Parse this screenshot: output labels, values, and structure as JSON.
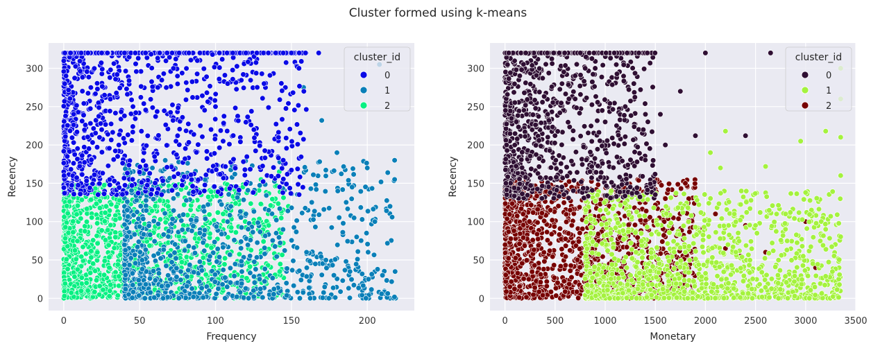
{
  "title": "Cluster formed using k-means",
  "chart_data": [
    {
      "type": "scatter",
      "xlabel": "Frequency",
      "ylabel": "Recency",
      "xlim": [
        -10,
        231
      ],
      "ylim": [
        -16,
        333
      ],
      "xticks": [
        0,
        50,
        100,
        150,
        200
      ],
      "yticks": [
        0,
        50,
        100,
        150,
        200,
        250,
        300
      ],
      "grid": true,
      "legend": {
        "title": "cluster_id",
        "placement": "top-right"
      },
      "series": [
        {
          "name": "0",
          "color": "#0a0ae6",
          "region": {
            "x": [
              0,
              160
            ],
            "y": [
              135,
              320
            ]
          },
          "anchors": [
            [
              108,
              280
            ],
            [
              132,
              280
            ],
            [
              155,
              300
            ],
            [
              150,
              320
            ],
            [
              168,
              320
            ],
            [
              120,
              320
            ],
            [
              88,
              310
            ],
            [
              98,
              318
            ],
            [
              62,
              275
            ],
            [
              75,
              212
            ],
            [
              72,
              232
            ],
            [
              105,
              205
            ],
            [
              90,
              225
            ],
            [
              100,
              250
            ],
            [
              40,
              238
            ],
            [
              25,
              220
            ]
          ]
        },
        {
          "name": "1",
          "color": "#0a7fb8",
          "region": {
            "x": [
              40,
              220
            ],
            "y": [
              0,
              180
            ]
          },
          "anchors": [
            [
              208,
              305
            ],
            [
              158,
              275
            ],
            [
              170,
              232
            ],
            [
              180,
              190
            ],
            [
              190,
              145
            ],
            [
              200,
              170
            ],
            [
              218,
              180
            ],
            [
              218,
              155
            ],
            [
              215,
              120
            ],
            [
              205,
              100
            ],
            [
              193,
              80
            ],
            [
              186,
              48
            ],
            [
              178,
              30
            ],
            [
              160,
              60
            ],
            [
              140,
              85
            ],
            [
              120,
              110
            ],
            [
              210,
              30
            ]
          ]
        },
        {
          "name": "2",
          "color": "#08f082",
          "region": {
            "x": [
              0,
              145
            ],
            "y": [
              0,
              150
            ]
          },
          "anchors": [
            [
              142,
              165
            ],
            [
              130,
              155
            ],
            [
              118,
              145
            ],
            [
              125,
              115
            ],
            [
              148,
              120
            ],
            [
              135,
              95
            ],
            [
              105,
              110
            ],
            [
              85,
              95
            ],
            [
              70,
              80
            ],
            [
              55,
              60
            ],
            [
              30,
              40
            ],
            [
              15,
              20
            ]
          ]
        }
      ]
    },
    {
      "type": "scatter",
      "xlabel": "Monetary",
      "ylabel": "Recency",
      "xlim": [
        -150,
        3500
      ],
      "ylim": [
        -16,
        333
      ],
      "xticks": [
        0,
        500,
        1000,
        1500,
        2000,
        2500,
        3000,
        3500
      ],
      "yticks": [
        0,
        50,
        100,
        150,
        200,
        250,
        300
      ],
      "grid": true,
      "legend": {
        "title": "cluster_id",
        "placement": "top-right"
      },
      "series": [
        {
          "name": "0",
          "color": "#2f0f33",
          "region": {
            "x": [
              0,
              1500
            ],
            "y": [
              130,
              320
            ]
          },
          "anchors": [
            [
              2000,
              320
            ],
            [
              2650,
              320
            ],
            [
              1900,
              212
            ],
            [
              2400,
              212
            ],
            [
              1000,
              230
            ],
            [
              1200,
              250
            ],
            [
              1380,
              220
            ],
            [
              1550,
              240
            ],
            [
              1600,
              200
            ],
            [
              1750,
              270
            ],
            [
              900,
              300
            ],
            [
              700,
              260
            ],
            [
              800,
              300
            ]
          ]
        },
        {
          "name": "1",
          "color": "#a4f23e",
          "region": {
            "x": [
              800,
              3350
            ],
            "y": [
              0,
              140
            ]
          },
          "anchors": [
            [
              3350,
              300
            ],
            [
              3350,
              260
            ],
            [
              3350,
              210
            ],
            [
              2950,
              205
            ],
            [
              2200,
              218
            ],
            [
              3200,
              218
            ],
            [
              2050,
              190
            ],
            [
              2150,
              170
            ],
            [
              2600,
              172
            ],
            [
              3000,
              138
            ],
            [
              3350,
              160
            ],
            [
              2800,
              110
            ],
            [
              3200,
              90
            ],
            [
              2500,
              95
            ],
            [
              1800,
              60
            ]
          ]
        },
        {
          "name": "2",
          "color": "#770202",
          "region": {
            "x": [
              0,
              1900
            ],
            "y": [
              0,
              155
            ]
          },
          "anchors": [
            [
              1500,
              155
            ],
            [
              1800,
              150
            ],
            [
              1600,
              130
            ],
            [
              1400,
              125
            ],
            [
              1950,
              90
            ],
            [
              2200,
              65
            ],
            [
              2400,
              95
            ],
            [
              2600,
              60
            ],
            [
              3000,
              100
            ],
            [
              3100,
              40
            ],
            [
              2350,
              55
            ],
            [
              2100,
              110
            ]
          ]
        }
      ]
    }
  ]
}
